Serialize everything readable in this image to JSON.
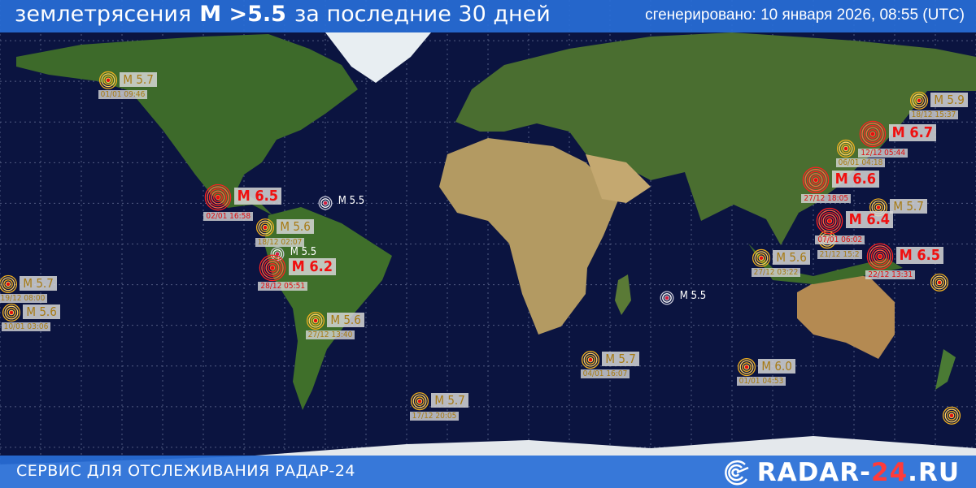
{
  "header": {
    "title_prefix": "землетрясения",
    "title_magnitude": "M >5.5",
    "title_suffix": "за последние 30 дней",
    "generated": "сгенерировано: 10 января 2026, 08:55 (UTC)"
  },
  "footer": {
    "service": "СЕРВИС ДЛЯ ОТСЛЕЖИВАНИЯ  РАДАР-24",
    "brand_a": "RADAR-",
    "brand_num": "24",
    "brand_b": ".RU"
  },
  "colors": {
    "ocean": "#0b1440",
    "bar": "#286ed7",
    "red": "#f01010",
    "yellow": "#e8b030",
    "white": "#ffffff"
  },
  "quakes": [
    {
      "lon": -140.1,
      "lat": 60.4,
      "mag": "M 5.7",
      "date": "01/01 09:46",
      "level": "yellow"
    },
    {
      "lon": -99.6,
      "lat": 17.2,
      "mag": "M 6.5",
      "date": "02/01 16:58",
      "level": "red"
    },
    {
      "lon": -60.0,
      "lat": 15.1,
      "mag": "M 5.5",
      "date": "",
      "level": "white"
    },
    {
      "lon": -82.2,
      "lat": 6.1,
      "mag": "M 5.6",
      "date": "18/12 02:07",
      "level": "yellow"
    },
    {
      "lon": -77.7,
      "lat": -3.7,
      "mag": "M 5.5",
      "date": "",
      "level": "white"
    },
    {
      "lon": -79.5,
      "lat": -8.8,
      "mag": "M 6.2",
      "date": "28/12 05:51",
      "level": "red"
    },
    {
      "lon": -63.6,
      "lat": -28.3,
      "mag": "M 5.6",
      "date": "27/12 13:40",
      "level": "yellow"
    },
    {
      "lon": -177.0,
      "lat": -14.8,
      "mag": "M 5.7",
      "date": "19/12 08:00",
      "level": "yellow"
    },
    {
      "lon": -175.8,
      "lat": -25.3,
      "mag": "M 5.6",
      "date": "10/01 03:06",
      "level": "yellow"
    },
    {
      "lon": 66.0,
      "lat": -19.9,
      "mag": "M 5.5",
      "date": "",
      "level": "white"
    },
    {
      "lon": 37.8,
      "lat": -42.7,
      "mag": "M 5.7",
      "date": "04/01 16:07",
      "level": "yellow"
    },
    {
      "lon": 95.4,
      "lat": -45.4,
      "mag": "M 6.0",
      "date": "01/01 04:53",
      "level": "yellow"
    },
    {
      "lon": -25.2,
      "lat": -58.0,
      "mag": "M 5.7",
      "date": "17/12 20:05",
      "level": "yellow"
    },
    {
      "lon": 100.8,
      "lat": -5.2,
      "mag": "M 5.6",
      "date": "27/12 03:22",
      "level": "yellow"
    },
    {
      "lon": 159.0,
      "lat": 52.9,
      "mag": "M 5.9",
      "date": "18/12 15:37",
      "level": "yellow"
    },
    {
      "lon": 132.0,
      "lat": 35.2,
      "mag": "",
      "date": "06/01 04:18",
      "level": "yellow"
    },
    {
      "lon": 141.9,
      "lat": 40.6,
      "mag": "M 6.7",
      "date": "12/12 05:44",
      "level": "red"
    },
    {
      "lon": 120.9,
      "lat": 23.6,
      "mag": "M 6.6",
      "date": "27/12 18:05",
      "level": "red"
    },
    {
      "lon": 125.1,
      "lat": 1.6,
      "mag": "",
      "date": "21/12 15:2",
      "level": "yellow"
    },
    {
      "lon": 144.0,
      "lat": 13.5,
      "mag": "M 5.7",
      "date": "",
      "level": "yellow"
    },
    {
      "lon": 126.0,
      "lat": 8.5,
      "mag": "M 6.4",
      "date": "07/01 06:02",
      "level": "red"
    },
    {
      "lon": 144.6,
      "lat": -4.6,
      "mag": "M 6.5",
      "date": "22/12 13:31",
      "level": "red"
    },
    {
      "lon": 166.5,
      "lat": -14.2,
      "mag": "",
      "date": "",
      "level": "yellow"
    },
    {
      "lon": 171.0,
      "lat": -63.3,
      "mag": "",
      "date": "",
      "level": "yellow"
    }
  ]
}
